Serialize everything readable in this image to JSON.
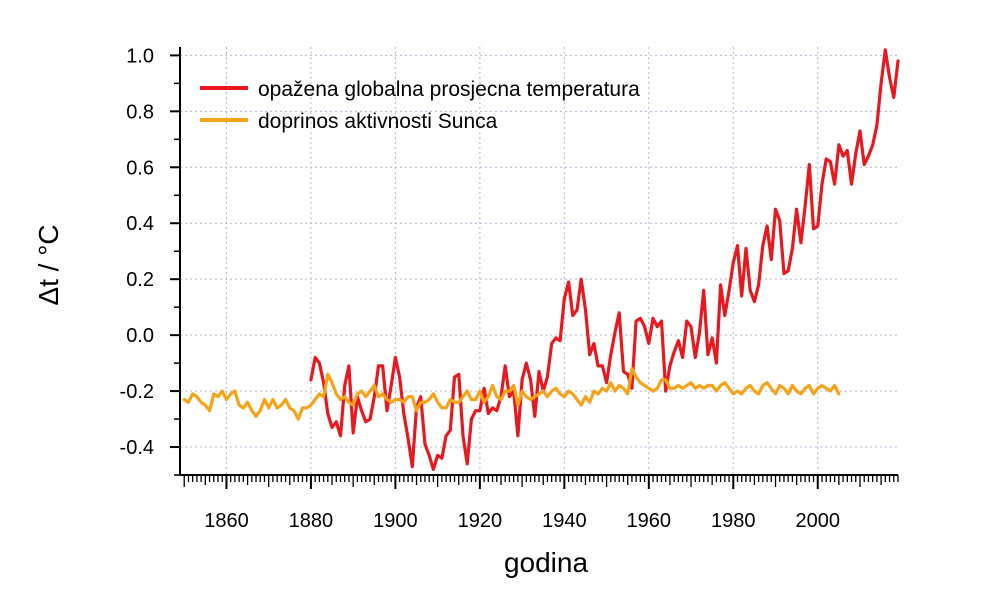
{
  "chart_data": {
    "type": "line",
    "xlabel": "godina",
    "ylabel": "Δt / °C",
    "xlim": [
      1849,
      2019
    ],
    "ylim": [
      -0.5,
      1.03
    ],
    "x_ticks": [
      1860,
      1880,
      1900,
      1920,
      1940,
      1960,
      1980,
      2000
    ],
    "y_ticks": [
      -0.4,
      -0.2,
      0.0,
      0.2,
      0.4,
      0.6,
      0.8,
      1.0
    ],
    "x_tick_labels": [
      "1860",
      "1880",
      "1900",
      "1920",
      "1940",
      "1960",
      "1980",
      "2000"
    ],
    "y_tick_labels": [
      "-0.4",
      "-0.2",
      "0.0",
      "0.2",
      "0.4",
      "0.6",
      "0.8",
      "1.0"
    ],
    "grid": true,
    "legend_position": "top-left",
    "series": [
      {
        "name": "opažena globalna prosjecna temperatura",
        "color": "#e8191e",
        "points": [
          [
            1880,
            -0.16
          ],
          [
            1881,
            -0.08
          ],
          [
            1882,
            -0.1
          ],
          [
            1883,
            -0.17
          ],
          [
            1884,
            -0.28
          ],
          [
            1885,
            -0.33
          ],
          [
            1886,
            -0.31
          ],
          [
            1887,
            -0.36
          ],
          [
            1888,
            -0.18
          ],
          [
            1889,
            -0.11
          ],
          [
            1890,
            -0.35
          ],
          [
            1891,
            -0.22
          ],
          [
            1892,
            -0.27
          ],
          [
            1893,
            -0.31
          ],
          [
            1894,
            -0.3
          ],
          [
            1895,
            -0.22
          ],
          [
            1896,
            -0.11
          ],
          [
            1897,
            -0.11
          ],
          [
            1898,
            -0.27
          ],
          [
            1899,
            -0.18
          ],
          [
            1900,
            -0.08
          ],
          [
            1901,
            -0.15
          ],
          [
            1902,
            -0.28
          ],
          [
            1903,
            -0.37
          ],
          [
            1904,
            -0.47
          ],
          [
            1905,
            -0.26
          ],
          [
            1906,
            -0.22
          ],
          [
            1907,
            -0.39
          ],
          [
            1908,
            -0.43
          ],
          [
            1909,
            -0.48
          ],
          [
            1910,
            -0.43
          ],
          [
            1911,
            -0.44
          ],
          [
            1912,
            -0.36
          ],
          [
            1913,
            -0.34
          ],
          [
            1914,
            -0.15
          ],
          [
            1915,
            -0.14
          ],
          [
            1916,
            -0.36
          ],
          [
            1917,
            -0.46
          ],
          [
            1918,
            -0.3
          ],
          [
            1919,
            -0.27
          ],
          [
            1920,
            -0.27
          ],
          [
            1921,
            -0.19
          ],
          [
            1922,
            -0.28
          ],
          [
            1923,
            -0.26
          ],
          [
            1924,
            -0.27
          ],
          [
            1925,
            -0.22
          ],
          [
            1926,
            -0.11
          ],
          [
            1927,
            -0.22
          ],
          [
            1928,
            -0.2
          ],
          [
            1929,
            -0.36
          ],
          [
            1930,
            -0.16
          ],
          [
            1931,
            -0.1
          ],
          [
            1932,
            -0.16
          ],
          [
            1933,
            -0.29
          ],
          [
            1934,
            -0.13
          ],
          [
            1935,
            -0.2
          ],
          [
            1936,
            -0.15
          ],
          [
            1937,
            -0.03
          ],
          [
            1938,
            -0.01
          ],
          [
            1939,
            -0.02
          ],
          [
            1940,
            0.13
          ],
          [
            1941,
            0.19
          ],
          [
            1942,
            0.07
          ],
          [
            1943,
            0.09
          ],
          [
            1944,
            0.2
          ],
          [
            1945,
            0.09
          ],
          [
            1946,
            -0.07
          ],
          [
            1947,
            -0.03
          ],
          [
            1948,
            -0.11
          ],
          [
            1949,
            -0.11
          ],
          [
            1950,
            -0.17
          ],
          [
            1951,
            -0.07
          ],
          [
            1952,
            0.01
          ],
          [
            1953,
            0.08
          ],
          [
            1954,
            -0.13
          ],
          [
            1955,
            -0.14
          ],
          [
            1956,
            -0.19
          ],
          [
            1957,
            0.05
          ],
          [
            1958,
            0.06
          ],
          [
            1959,
            0.03
          ],
          [
            1960,
            -0.03
          ],
          [
            1961,
            0.06
          ],
          [
            1962,
            0.03
          ],
          [
            1963,
            0.05
          ],
          [
            1964,
            -0.2
          ],
          [
            1965,
            -0.11
          ],
          [
            1966,
            -0.06
          ],
          [
            1967,
            -0.02
          ],
          [
            1968,
            -0.08
          ],
          [
            1969,
            0.05
          ],
          [
            1970,
            0.03
          ],
          [
            1971,
            -0.08
          ],
          [
            1972,
            0.01
          ],
          [
            1973,
            0.16
          ],
          [
            1974,
            -0.07
          ],
          [
            1975,
            -0.01
          ],
          [
            1976,
            -0.1
          ],
          [
            1977,
            0.18
          ],
          [
            1978,
            0.07
          ],
          [
            1979,
            0.16
          ],
          [
            1980,
            0.26
          ],
          [
            1981,
            0.32
          ],
          [
            1982,
            0.14
          ],
          [
            1983,
            0.31
          ],
          [
            1984,
            0.16
          ],
          [
            1985,
            0.12
          ],
          [
            1986,
            0.18
          ],
          [
            1987,
            0.32
          ],
          [
            1988,
            0.39
          ],
          [
            1989,
            0.27
          ],
          [
            1990,
            0.45
          ],
          [
            1991,
            0.41
          ],
          [
            1992,
            0.22
          ],
          [
            1993,
            0.23
          ],
          [
            1994,
            0.31
          ],
          [
            1995,
            0.45
          ],
          [
            1996,
            0.33
          ],
          [
            1997,
            0.46
          ],
          [
            1998,
            0.61
          ],
          [
            1999,
            0.38
          ],
          [
            2000,
            0.39
          ],
          [
            2001,
            0.54
          ],
          [
            2002,
            0.63
          ],
          [
            2003,
            0.62
          ],
          [
            2004,
            0.54
          ],
          [
            2005,
            0.68
          ],
          [
            2006,
            0.64
          ],
          [
            2007,
            0.66
          ],
          [
            2008,
            0.54
          ],
          [
            2009,
            0.65
          ],
          [
            2010,
            0.73
          ],
          [
            2011,
            0.61
          ],
          [
            2012,
            0.64
          ],
          [
            2013,
            0.68
          ],
          [
            2014,
            0.75
          ],
          [
            2015,
            0.9
          ],
          [
            2016,
            1.02
          ],
          [
            2017,
            0.92
          ],
          [
            2018,
            0.85
          ],
          [
            2019,
            0.98
          ]
        ]
      },
      {
        "name": "doprinos aktivnosti Sunca",
        "color": "#f5a319",
        "points": [
          [
            1850,
            -0.23
          ],
          [
            1851,
            -0.24
          ],
          [
            1852,
            -0.21
          ],
          [
            1853,
            -0.22
          ],
          [
            1854,
            -0.24
          ],
          [
            1855,
            -0.25
          ],
          [
            1856,
            -0.27
          ],
          [
            1857,
            -0.21
          ],
          [
            1858,
            -0.22
          ],
          [
            1859,
            -0.2
          ],
          [
            1860,
            -0.23
          ],
          [
            1861,
            -0.21
          ],
          [
            1862,
            -0.2
          ],
          [
            1863,
            -0.25
          ],
          [
            1864,
            -0.26
          ],
          [
            1865,
            -0.24
          ],
          [
            1866,
            -0.27
          ],
          [
            1867,
            -0.29
          ],
          [
            1868,
            -0.27
          ],
          [
            1869,
            -0.23
          ],
          [
            1870,
            -0.26
          ],
          [
            1871,
            -0.23
          ],
          [
            1872,
            -0.26
          ],
          [
            1873,
            -0.25
          ],
          [
            1874,
            -0.23
          ],
          [
            1875,
            -0.26
          ],
          [
            1876,
            -0.27
          ],
          [
            1877,
            -0.3
          ],
          [
            1878,
            -0.26
          ],
          [
            1879,
            -0.26
          ],
          [
            1880,
            -0.25
          ],
          [
            1881,
            -0.23
          ],
          [
            1882,
            -0.21
          ],
          [
            1883,
            -0.22
          ],
          [
            1884,
            -0.14
          ],
          [
            1885,
            -0.17
          ],
          [
            1886,
            -0.21
          ],
          [
            1887,
            -0.23
          ],
          [
            1888,
            -0.22
          ],
          [
            1889,
            -0.24
          ],
          [
            1890,
            -0.25
          ],
          [
            1891,
            -0.21
          ],
          [
            1892,
            -0.2
          ],
          [
            1893,
            -0.22
          ],
          [
            1894,
            -0.2
          ],
          [
            1895,
            -0.18
          ],
          [
            1896,
            -0.22
          ],
          [
            1897,
            -0.21
          ],
          [
            1898,
            -0.23
          ],
          [
            1899,
            -0.24
          ],
          [
            1900,
            -0.23
          ],
          [
            1901,
            -0.23
          ],
          [
            1902,
            -0.24
          ],
          [
            1903,
            -0.22
          ],
          [
            1904,
            -0.22
          ],
          [
            1905,
            -0.27
          ],
          [
            1906,
            -0.24
          ],
          [
            1907,
            -0.24
          ],
          [
            1908,
            -0.23
          ],
          [
            1909,
            -0.21
          ],
          [
            1910,
            -0.24
          ],
          [
            1911,
            -0.26
          ],
          [
            1912,
            -0.26
          ],
          [
            1913,
            -0.23
          ],
          [
            1914,
            -0.24
          ],
          [
            1915,
            -0.24
          ],
          [
            1916,
            -0.22
          ],
          [
            1917,
            -0.2
          ],
          [
            1918,
            -0.23
          ],
          [
            1919,
            -0.23
          ],
          [
            1920,
            -0.2
          ],
          [
            1921,
            -0.24
          ],
          [
            1922,
            -0.22
          ],
          [
            1923,
            -0.18
          ],
          [
            1924,
            -0.22
          ],
          [
            1925,
            -0.23
          ],
          [
            1926,
            -0.2
          ],
          [
            1927,
            -0.2
          ],
          [
            1928,
            -0.18
          ],
          [
            1929,
            -0.25
          ],
          [
            1930,
            -0.2
          ],
          [
            1931,
            -0.22
          ],
          [
            1932,
            -0.23
          ],
          [
            1933,
            -0.22
          ],
          [
            1934,
            -0.21
          ],
          [
            1935,
            -0.2
          ],
          [
            1936,
            -0.22
          ],
          [
            1937,
            -0.2
          ],
          [
            1938,
            -0.19
          ],
          [
            1939,
            -0.21
          ],
          [
            1940,
            -0.22
          ],
          [
            1941,
            -0.2
          ],
          [
            1942,
            -0.21
          ],
          [
            1943,
            -0.23
          ],
          [
            1944,
            -0.25
          ],
          [
            1945,
            -0.22
          ],
          [
            1946,
            -0.24
          ],
          [
            1947,
            -0.2
          ],
          [
            1948,
            -0.21
          ],
          [
            1949,
            -0.19
          ],
          [
            1950,
            -0.2
          ],
          [
            1951,
            -0.17
          ],
          [
            1952,
            -0.2
          ],
          [
            1953,
            -0.18
          ],
          [
            1954,
            -0.19
          ],
          [
            1955,
            -0.21
          ],
          [
            1956,
            -0.12
          ],
          [
            1957,
            -0.15
          ],
          [
            1958,
            -0.17
          ],
          [
            1959,
            -0.18
          ],
          [
            1960,
            -0.19
          ],
          [
            1961,
            -0.2
          ],
          [
            1962,
            -0.19
          ],
          [
            1963,
            -0.16
          ],
          [
            1964,
            -0.16
          ],
          [
            1965,
            -0.19
          ],
          [
            1966,
            -0.19
          ],
          [
            1967,
            -0.18
          ],
          [
            1968,
            -0.19
          ],
          [
            1969,
            -0.18
          ],
          [
            1970,
            -0.17
          ],
          [
            1971,
            -0.19
          ],
          [
            1972,
            -0.18
          ],
          [
            1973,
            -0.19
          ],
          [
            1974,
            -0.18
          ],
          [
            1975,
            -0.18
          ],
          [
            1976,
            -0.2
          ],
          [
            1977,
            -0.18
          ],
          [
            1978,
            -0.17
          ],
          [
            1979,
            -0.19
          ],
          [
            1980,
            -0.21
          ],
          [
            1981,
            -0.2
          ],
          [
            1982,
            -0.21
          ],
          [
            1983,
            -0.19
          ],
          [
            1984,
            -0.18
          ],
          [
            1985,
            -0.2
          ],
          [
            1986,
            -0.21
          ],
          [
            1987,
            -0.18
          ],
          [
            1988,
            -0.17
          ],
          [
            1989,
            -0.19
          ],
          [
            1990,
            -0.21
          ],
          [
            1991,
            -0.18
          ],
          [
            1992,
            -0.19
          ],
          [
            1993,
            -0.21
          ],
          [
            1994,
            -0.18
          ],
          [
            1995,
            -0.2
          ],
          [
            1996,
            -0.21
          ],
          [
            1997,
            -0.19
          ],
          [
            1998,
            -0.18
          ],
          [
            1999,
            -0.21
          ],
          [
            2000,
            -0.19
          ],
          [
            2001,
            -0.18
          ],
          [
            2002,
            -0.19
          ],
          [
            2003,
            -0.2
          ],
          [
            2004,
            -0.18
          ],
          [
            2005,
            -0.21
          ]
        ]
      }
    ]
  }
}
